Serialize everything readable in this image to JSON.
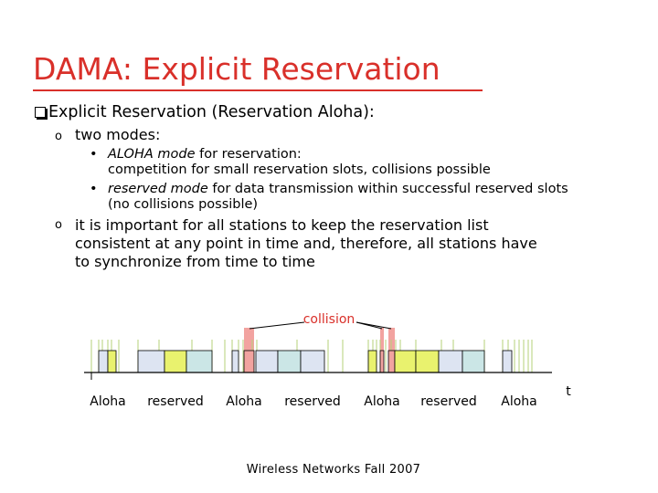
{
  "title": "DAMA: Explicit Reservation",
  "main_bullet": "Explicit Reservation (Reservation Aloha):",
  "sub1": {
    "label": "two modes:",
    "items": [
      {
        "italic": "ALOHA mode",
        "rest": " for reservation:",
        "cont": "competition for small reservation slots, collisions possible"
      },
      {
        "italic": "reserved mode",
        "rest": " for data transmission within successful reserved slots",
        "cont": "(no collisions possible)"
      }
    ]
  },
  "sub2": {
    "lines": [
      "it is important for all stations to keep the reservation list",
      "consistent at any point in time and, therefore, all stations have",
      "to synchronize from time to time"
    ]
  },
  "diagram": {
    "collision_label": "collision",
    "axis_label": "t",
    "phase_labels": [
      "Aloha",
      "reserved",
      "Aloha",
      "reserved",
      "Aloha",
      "reserved",
      "Aloha"
    ],
    "colors": {
      "aloha_slot": "#dde4f2",
      "reserved_yellow": "#e9f26e",
      "reserved_blue": "#dde4f2",
      "reserved_teal": "#cbe6e6",
      "collision": "#f2a3a0",
      "tick": "#b5d07a"
    }
  },
  "footer": "Wireless Networks Fall 2007"
}
